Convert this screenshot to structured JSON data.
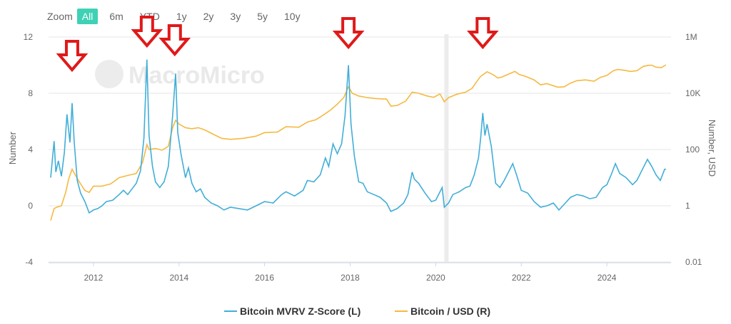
{
  "zoom": {
    "label": "Zoom",
    "options": [
      "All",
      "6m",
      "YTD",
      "1y",
      "2y",
      "3y",
      "5y",
      "10y"
    ],
    "active": "All"
  },
  "watermark": "MacroMicro",
  "colors": {
    "zscore": "#41aed8",
    "price": "#f5b942",
    "arrow": "#e01919",
    "band": "#ececec",
    "grid": "#e6e6e6"
  },
  "chart_data": {
    "type": "line",
    "title": "",
    "xlabel": "",
    "ylabel_left": "Number",
    "ylabel_right": "Number, USD",
    "x_ticks": [
      "2012",
      "2014",
      "2016",
      "2018",
      "2020",
      "2022",
      "2024"
    ],
    "xlim": [
      2010.95,
      2025.5
    ],
    "y_left_ticks": [
      "-4",
      "0",
      "4",
      "8",
      "12"
    ],
    "ylim_left": [
      -4,
      12
    ],
    "y_right_ticks": [
      "0.01",
      "1",
      "100",
      "10K",
      "1M"
    ],
    "ylim_right_log": [
      0.01,
      1000000
    ],
    "shaded_range": [
      2020.2,
      2020.3
    ],
    "arrow_annotations_x": [
      2011.5,
      2013.25,
      2013.9,
      2017.96,
      2021.1
    ],
    "series": [
      {
        "name": "Bitcoin MVRV Z-Score (L)",
        "axis": "left",
        "points": [
          [
            2011.0,
            2.0
          ],
          [
            2011.08,
            4.6
          ],
          [
            2011.12,
            2.4
          ],
          [
            2011.18,
            3.2
          ],
          [
            2011.25,
            2.1
          ],
          [
            2011.32,
            3.8
          ],
          [
            2011.38,
            6.5
          ],
          [
            2011.45,
            4.5
          ],
          [
            2011.5,
            7.3
          ],
          [
            2011.55,
            4.5
          ],
          [
            2011.62,
            1.8
          ],
          [
            2011.7,
            0.9
          ],
          [
            2011.8,
            0.3
          ],
          [
            2011.9,
            -0.5
          ],
          [
            2012.0,
            -0.3
          ],
          [
            2012.1,
            -0.2
          ],
          [
            2012.2,
            0.0
          ],
          [
            2012.3,
            0.3
          ],
          [
            2012.45,
            0.4
          ],
          [
            2012.6,
            0.8
          ],
          [
            2012.7,
            1.1
          ],
          [
            2012.8,
            0.8
          ],
          [
            2012.9,
            1.2
          ],
          [
            2013.0,
            1.6
          ],
          [
            2013.1,
            2.5
          ],
          [
            2013.18,
            4.8
          ],
          [
            2013.25,
            10.4
          ],
          [
            2013.3,
            5.0
          ],
          [
            2013.38,
            2.8
          ],
          [
            2013.45,
            1.7
          ],
          [
            2013.55,
            1.3
          ],
          [
            2013.65,
            1.7
          ],
          [
            2013.75,
            2.8
          ],
          [
            2013.85,
            6.4
          ],
          [
            2013.92,
            9.4
          ],
          [
            2013.97,
            5.2
          ],
          [
            2014.05,
            3.6
          ],
          [
            2014.15,
            2.0
          ],
          [
            2014.22,
            2.7
          ],
          [
            2014.3,
            1.6
          ],
          [
            2014.4,
            1.0
          ],
          [
            2014.5,
            1.2
          ],
          [
            2014.6,
            0.6
          ],
          [
            2014.75,
            0.2
          ],
          [
            2014.9,
            0.0
          ],
          [
            2015.05,
            -0.3
          ],
          [
            2015.2,
            -0.1
          ],
          [
            2015.4,
            -0.2
          ],
          [
            2015.6,
            -0.3
          ],
          [
            2015.8,
            0.0
          ],
          [
            2016.0,
            0.3
          ],
          [
            2016.2,
            0.2
          ],
          [
            2016.4,
            0.8
          ],
          [
            2016.5,
            1.0
          ],
          [
            2016.7,
            0.7
          ],
          [
            2016.9,
            1.1
          ],
          [
            2017.0,
            1.8
          ],
          [
            2017.15,
            1.7
          ],
          [
            2017.3,
            2.2
          ],
          [
            2017.42,
            3.4
          ],
          [
            2017.5,
            2.8
          ],
          [
            2017.6,
            4.4
          ],
          [
            2017.7,
            3.7
          ],
          [
            2017.8,
            4.4
          ],
          [
            2017.88,
            6.4
          ],
          [
            2017.96,
            10.0
          ],
          [
            2018.02,
            5.8
          ],
          [
            2018.1,
            3.5
          ],
          [
            2018.2,
            1.7
          ],
          [
            2018.3,
            1.6
          ],
          [
            2018.4,
            1.0
          ],
          [
            2018.55,
            0.8
          ],
          [
            2018.7,
            0.6
          ],
          [
            2018.85,
            0.2
          ],
          [
            2018.95,
            -0.4
          ],
          [
            2019.1,
            -0.2
          ],
          [
            2019.25,
            0.2
          ],
          [
            2019.35,
            0.8
          ],
          [
            2019.45,
            2.4
          ],
          [
            2019.5,
            1.9
          ],
          [
            2019.6,
            1.6
          ],
          [
            2019.75,
            0.9
          ],
          [
            2019.9,
            0.3
          ],
          [
            2020.0,
            0.4
          ],
          [
            2020.1,
            1.0
          ],
          [
            2020.15,
            1.3
          ],
          [
            2020.2,
            -0.1
          ],
          [
            2020.3,
            0.2
          ],
          [
            2020.4,
            0.8
          ],
          [
            2020.55,
            1.0
          ],
          [
            2020.7,
            1.3
          ],
          [
            2020.8,
            1.4
          ],
          [
            2020.9,
            2.2
          ],
          [
            2021.0,
            3.4
          ],
          [
            2021.05,
            4.8
          ],
          [
            2021.1,
            6.6
          ],
          [
            2021.15,
            5.0
          ],
          [
            2021.2,
            5.8
          ],
          [
            2021.3,
            4.2
          ],
          [
            2021.4,
            1.6
          ],
          [
            2021.5,
            1.3
          ],
          [
            2021.6,
            1.8
          ],
          [
            2021.7,
            2.4
          ],
          [
            2021.8,
            3.0
          ],
          [
            2021.9,
            2.1
          ],
          [
            2022.0,
            1.1
          ],
          [
            2022.15,
            0.9
          ],
          [
            2022.3,
            0.3
          ],
          [
            2022.45,
            -0.1
          ],
          [
            2022.6,
            0.0
          ],
          [
            2022.75,
            0.2
          ],
          [
            2022.88,
            -0.3
          ],
          [
            2023.0,
            0.1
          ],
          [
            2023.15,
            0.6
          ],
          [
            2023.3,
            0.8
          ],
          [
            2023.45,
            0.7
          ],
          [
            2023.6,
            0.5
          ],
          [
            2023.75,
            0.6
          ],
          [
            2023.9,
            1.3
          ],
          [
            2024.0,
            1.5
          ],
          [
            2024.1,
            2.2
          ],
          [
            2024.2,
            3.0
          ],
          [
            2024.3,
            2.3
          ],
          [
            2024.45,
            2.0
          ],
          [
            2024.6,
            1.5
          ],
          [
            2024.7,
            1.8
          ],
          [
            2024.85,
            2.7
          ],
          [
            2024.95,
            3.3
          ],
          [
            2025.05,
            2.8
          ],
          [
            2025.15,
            2.2
          ],
          [
            2025.25,
            1.8
          ],
          [
            2025.35,
            2.6
          ],
          [
            2025.38,
            2.6
          ]
        ]
      },
      {
        "name": "Bitcoin / USD (R)",
        "axis": "right",
        "points": [
          [
            2011.0,
            0.3
          ],
          [
            2011.08,
            0.8
          ],
          [
            2011.15,
            0.9
          ],
          [
            2011.25,
            1.0
          ],
          [
            2011.35,
            3
          ],
          [
            2011.42,
            9
          ],
          [
            2011.5,
            20
          ],
          [
            2011.58,
            12
          ],
          [
            2011.7,
            6
          ],
          [
            2011.8,
            3.5
          ],
          [
            2011.9,
            3
          ],
          [
            2012.0,
            5
          ],
          [
            2012.2,
            5
          ],
          [
            2012.4,
            6
          ],
          [
            2012.6,
            10
          ],
          [
            2012.8,
            12
          ],
          [
            2013.0,
            14
          ],
          [
            2013.15,
            35
          ],
          [
            2013.25,
            150
          ],
          [
            2013.3,
            100
          ],
          [
            2013.45,
            110
          ],
          [
            2013.6,
            95
          ],
          [
            2013.75,
            130
          ],
          [
            2013.85,
            600
          ],
          [
            2013.92,
            1100
          ],
          [
            2014.0,
            800
          ],
          [
            2014.15,
            600
          ],
          [
            2014.3,
            550
          ],
          [
            2014.45,
            600
          ],
          [
            2014.6,
            500
          ],
          [
            2014.8,
            350
          ],
          [
            2015.0,
            250
          ],
          [
            2015.2,
            230
          ],
          [
            2015.5,
            250
          ],
          [
            2015.8,
            300
          ],
          [
            2016.0,
            400
          ],
          [
            2016.3,
            420
          ],
          [
            2016.5,
            650
          ],
          [
            2016.8,
            620
          ],
          [
            2017.0,
            950
          ],
          [
            2017.2,
            1150
          ],
          [
            2017.4,
            1800
          ],
          [
            2017.55,
            2600
          ],
          [
            2017.7,
            4100
          ],
          [
            2017.85,
            7000
          ],
          [
            2017.96,
            17000
          ],
          [
            2018.05,
            10000
          ],
          [
            2018.2,
            8000
          ],
          [
            2018.4,
            7000
          ],
          [
            2018.6,
            6500
          ],
          [
            2018.85,
            6200
          ],
          [
            2018.95,
            3500
          ],
          [
            2019.1,
            3700
          ],
          [
            2019.3,
            5300
          ],
          [
            2019.45,
            11000
          ],
          [
            2019.6,
            10000
          ],
          [
            2019.8,
            8000
          ],
          [
            2019.95,
            7200
          ],
          [
            2020.1,
            9500
          ],
          [
            2020.2,
            5000
          ],
          [
            2020.3,
            7000
          ],
          [
            2020.5,
            9300
          ],
          [
            2020.7,
            11000
          ],
          [
            2020.85,
            15000
          ],
          [
            2020.95,
            25000
          ],
          [
            2021.05,
            40000
          ],
          [
            2021.2,
            58000
          ],
          [
            2021.35,
            45000
          ],
          [
            2021.45,
            35000
          ],
          [
            2021.55,
            38000
          ],
          [
            2021.7,
            48000
          ],
          [
            2021.85,
            60000
          ],
          [
            2021.95,
            47000
          ],
          [
            2022.1,
            40000
          ],
          [
            2022.3,
            30000
          ],
          [
            2022.45,
            20000
          ],
          [
            2022.6,
            22000
          ],
          [
            2022.85,
            16500
          ],
          [
            2023.0,
            17000
          ],
          [
            2023.15,
            23000
          ],
          [
            2023.3,
            28000
          ],
          [
            2023.5,
            30000
          ],
          [
            2023.7,
            27000
          ],
          [
            2023.85,
            37000
          ],
          [
            2024.0,
            43000
          ],
          [
            2024.15,
            63000
          ],
          [
            2024.25,
            70000
          ],
          [
            2024.4,
            66000
          ],
          [
            2024.55,
            60000
          ],
          [
            2024.7,
            63000
          ],
          [
            2024.85,
            90000
          ],
          [
            2024.97,
            98000
          ],
          [
            2025.05,
            100000
          ],
          [
            2025.15,
            85000
          ],
          [
            2025.28,
            82000
          ],
          [
            2025.38,
            103000
          ]
        ]
      }
    ]
  },
  "legend": [
    {
      "label": "Bitcoin MVRV Z-Score (L)"
    },
    {
      "label": "Bitcoin / USD (R)"
    }
  ]
}
